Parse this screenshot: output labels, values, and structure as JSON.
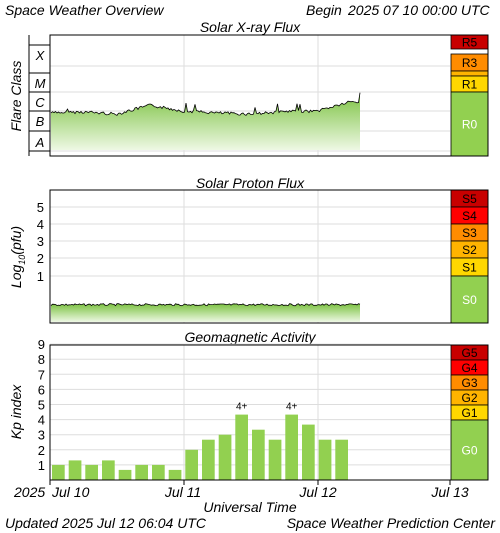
{
  "header": {
    "left": "Space Weather Overview",
    "begin_label": "Begin",
    "begin_value": "2025 07 10 00:00 UTC"
  },
  "footer": {
    "updated_label": "Updated",
    "updated_value": "2025 Jul 12 06:04 UTC",
    "credit": "Space Weather Prediction Center"
  },
  "chart_data": [
    {
      "id": "xray",
      "type": "area",
      "title": "Solar X-ray Flux",
      "ylabel": "Flare Class",
      "y_scale": "log",
      "class_labels": [
        "X",
        "M",
        "C",
        "B",
        "A"
      ],
      "xlim": [
        "2025-07-10 00:00",
        "2025-07-13 00:00"
      ],
      "x": [
        "2025-07-10 00:00",
        "2025-07-10 06:00",
        "2025-07-10 12:00",
        "2025-07-10 18:00",
        "2025-07-11 00:00",
        "2025-07-11 06:00",
        "2025-07-11 12:00",
        "2025-07-11 18:00",
        "2025-07-12 00:00",
        "2025-07-12 06:00"
      ],
      "values_class": [
        "B8",
        "B9",
        "B7",
        "C2",
        "C1",
        "B8",
        "B7",
        "B9",
        "C1",
        "C3"
      ],
      "scale_bar": [
        {
          "label": "R5",
          "color": "#c80000"
        },
        {
          "label": "R3",
          "color": "#ff8c00"
        },
        {
          "label": "",
          "color": "#ffb400"
        },
        {
          "label": "R1",
          "color": "#ffd700"
        },
        {
          "label": "R0",
          "color": "#92d050"
        }
      ]
    },
    {
      "id": "proton",
      "type": "area",
      "title": "Solar Proton Flux",
      "ylabel": "Log10(pfu)",
      "ylabel_main": "Log",
      "ylabel_sub": "10",
      "ylabel_unit": "(pfu)",
      "yticks": [
        "5",
        "4",
        "3",
        "2",
        "1"
      ],
      "xlim": [
        "2025-07-10 00:00",
        "2025-07-13 00:00"
      ],
      "log_pfu_series": [
        -0.1,
        -0.1,
        -0.1,
        -0.1,
        -0.1,
        -0.1,
        -0.1,
        -0.1,
        -0.1,
        -0.1
      ],
      "scale_bar": [
        {
          "label": "S5",
          "color": "#c80000"
        },
        {
          "label": "S4",
          "color": "#ff0000"
        },
        {
          "label": "S3",
          "color": "#ff8c00"
        },
        {
          "label": "S2",
          "color": "#ffb400"
        },
        {
          "label": "S1",
          "color": "#ffd700"
        },
        {
          "label": "S0",
          "color": "#92d050"
        }
      ]
    },
    {
      "id": "kp",
      "type": "bar",
      "title": "Geomagnetic Activity",
      "ylabel": "Kp index",
      "yticks": [
        "9",
        "8",
        "7",
        "6",
        "5",
        "4",
        "3",
        "2",
        "1"
      ],
      "ylim": [
        0,
        9
      ],
      "values": [
        1.0,
        1.3,
        1.0,
        1.3,
        0.67,
        1.0,
        1.0,
        0.67,
        2.0,
        2.67,
        3.0,
        4.33,
        3.33,
        2.67,
        4.33,
        3.67,
        2.67,
        2.67
      ],
      "annotations": [
        {
          "index": 11,
          "text": "4+"
        },
        {
          "index": 14,
          "text": "4+"
        }
      ],
      "scale_bar": [
        {
          "label": "G5",
          "color": "#c80000"
        },
        {
          "label": "G4",
          "color": "#ff0000"
        },
        {
          "label": "G3",
          "color": "#ff8c00"
        },
        {
          "label": "G2",
          "color": "#ffb400"
        },
        {
          "label": "G1",
          "color": "#ffd700"
        },
        {
          "label": "G0",
          "color": "#92d050"
        }
      ]
    }
  ],
  "x_axis": {
    "label": "Universal Time",
    "first_tick_year": "2025",
    "ticks": [
      "Jul 10",
      "Jul 11",
      "Jul 12",
      "Jul 13"
    ]
  },
  "colors": {
    "fill_top": "#7cc242",
    "fill_bottom": "#eef8e4",
    "bar": "#92d050",
    "grid": "#dddddd"
  }
}
